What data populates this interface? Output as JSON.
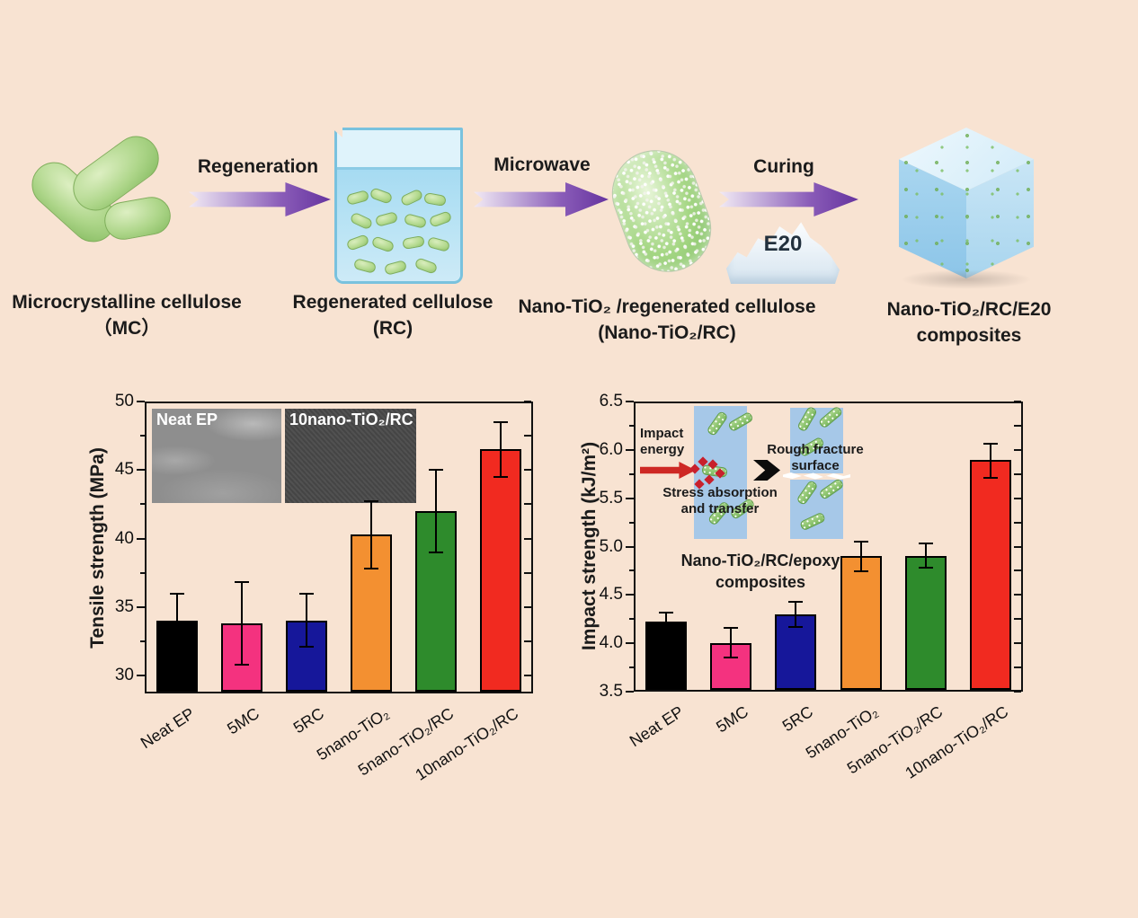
{
  "palette": {
    "background": "#f8e3d2",
    "arrow_purple": "#66349f",
    "beaker_blue": "#79c2de",
    "cellulose_green": "#aed68a",
    "panel_blue": "#a6c8e8",
    "impact_arrow_red": "#ce2824",
    "bar_outline": "#000000"
  },
  "flow": {
    "arrows": [
      {
        "label": "Regeneration"
      },
      {
        "label": "Microwave"
      },
      {
        "label": "Curing"
      }
    ],
    "e20_label": "E20",
    "items": [
      {
        "line1": "Microcrystalline cellulose",
        "line2": "（MC）"
      },
      {
        "line1": "Regenerated cellulose",
        "line2": "(RC)"
      },
      {
        "line1": "Nano-TiO₂ /regenerated cellulose",
        "line2": "(Nano-TiO₂/RC)"
      },
      {
        "line1": "Nano-TiO₂/RC/E20",
        "line2": "composites"
      }
    ]
  },
  "chart_data": [
    {
      "type": "bar",
      "title": "",
      "xlabel": "",
      "ylabel": "Tensile strength (MPa)",
      "categories": [
        "Neat EP",
        "5MC",
        "5RC",
        "5nano-TiO₂",
        "5nano-TiO₂/RC",
        "10nano-TiO₂/RC"
      ],
      "values": [
        34.0,
        33.8,
        34.0,
        40.3,
        42.0,
        46.5
      ],
      "error_up": [
        36.0,
        36.8,
        36.0,
        42.7,
        45.0,
        48.5
      ],
      "error_down": [
        32.2,
        30.8,
        32.1,
        37.8,
        39.0,
        44.5
      ],
      "bar_colors": [
        "#000000",
        "#f4327f",
        "#16179a",
        "#f39031",
        "#2e8b2c",
        "#f12a20"
      ],
      "ylim": [
        28.7,
        50
      ],
      "yticks": [
        30,
        35,
        40,
        45,
        50
      ],
      "ytick_labels": [
        "30",
        "35",
        "40",
        "45",
        "50"
      ],
      "grid": false,
      "legend": null,
      "insets": [
        {
          "label": "Neat EP"
        },
        {
          "label": "10nano-TiO₂/RC"
        }
      ]
    },
    {
      "type": "bar",
      "title": "",
      "xlabel": "",
      "ylabel": "Impact strength (kJ/m²)",
      "categories": [
        "Neat EP",
        "5MC",
        "5RC",
        "5nano-TiO₂",
        "5nano-TiO₂/RC",
        "10nano-TiO₂/RC"
      ],
      "values": [
        4.22,
        4.0,
        4.3,
        4.9,
        4.9,
        5.9
      ],
      "error_up": [
        4.32,
        4.16,
        4.43,
        5.05,
        5.03,
        6.06
      ],
      "error_down": [
        4.12,
        3.85,
        4.17,
        4.74,
        4.78,
        5.71
      ],
      "bar_colors": [
        "#000000",
        "#f4327f",
        "#16179a",
        "#f39031",
        "#2e8b2c",
        "#f12a20"
      ],
      "ylim": [
        3.5,
        6.5
      ],
      "yticks": [
        3.5,
        4.0,
        4.5,
        5.0,
        5.5,
        6.0,
        6.5
      ],
      "ytick_labels": [
        "3.5",
        "4.0",
        "4.5",
        "5.0",
        "5.5",
        "6.0",
        "6.5"
      ],
      "grid": false,
      "legend": null,
      "annotations": {
        "impact_energy_line1": "Impact",
        "impact_energy_line2": "energy",
        "stress_line1": "Stress absorption",
        "stress_line2": "and transfer",
        "rough_line1": "Rough fracture",
        "rough_line2": "surface",
        "caption_line1": "Nano-TiO₂/RC/epoxy",
        "caption_line2": "composites"
      }
    }
  ]
}
